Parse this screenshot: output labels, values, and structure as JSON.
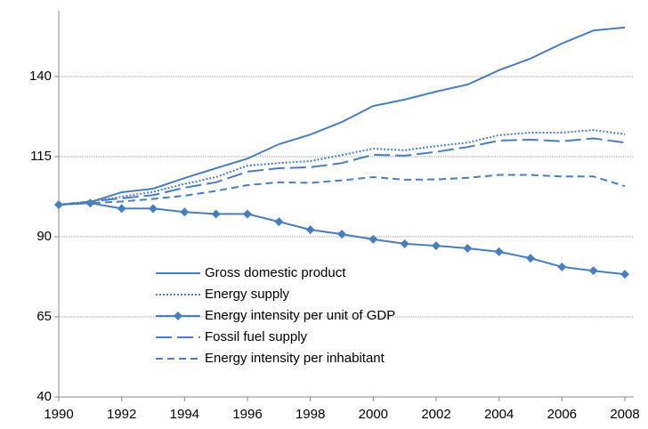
{
  "chart_data": {
    "type": "line",
    "x": [
      1990,
      1991,
      1992,
      1993,
      1994,
      1995,
      1996,
      1997,
      1998,
      1999,
      2000,
      2001,
      2002,
      2003,
      2004,
      2005,
      2006,
      2007,
      2008
    ],
    "xlim": [
      1990,
      2008
    ],
    "xticks": [
      1990,
      1992,
      1994,
      1996,
      1998,
      2000,
      2002,
      2004,
      2006,
      2008
    ],
    "ylim": [
      40,
      160
    ],
    "yticks": [
      40,
      65,
      90,
      115,
      140
    ],
    "grid": true,
    "legend": "lower left",
    "series": [
      {
        "name": "Gross domestic product",
        "color": "#4a7ebb",
        "style": "solid",
        "values": [
          100,
          100.8,
          103.9,
          105,
          108.3,
          111.4,
          114.4,
          118.9,
          121.9,
          125.8,
          130.8,
          132.8,
          135.3,
          137.5,
          142,
          145.6,
          150.3,
          154.4,
          155.3
        ]
      },
      {
        "name": "Energy supply",
        "color": "#4a7ebb",
        "style": "dotted",
        "values": [
          100,
          101,
          102.5,
          104,
          106.5,
          108.6,
          112.2,
          113,
          113.6,
          115.5,
          117.5,
          117,
          118.3,
          119.4,
          121.7,
          122.5,
          122.5,
          123.3,
          122
        ]
      },
      {
        "name": "Energy intensity per unit of GDP",
        "color": "#4a7ebb",
        "style": "solid",
        "marker": "diamond",
        "values": [
          100,
          100.5,
          98.8,
          98.8,
          97.7,
          97.1,
          97.1,
          94.7,
          92.2,
          90.8,
          89.2,
          87.8,
          87.2,
          86.4,
          85.3,
          83.3,
          80.6,
          79.4,
          78.3
        ]
      },
      {
        "name": "Fossil fuel supply",
        "color": "#4a7ebb",
        "style": "longdash",
        "values": [
          100,
          101,
          102,
          103,
          105.3,
          107,
          110.3,
          111.4,
          111.7,
          113,
          115.6,
          115.3,
          116.5,
          118,
          120,
          120.3,
          119.8,
          120.7,
          119.4
        ]
      },
      {
        "name": "Energy intensity per inhabitant",
        "color": "#4a7ebb",
        "style": "dashed",
        "values": [
          100,
          100.5,
          101,
          101.8,
          102.8,
          104.3,
          106.1,
          107,
          106.8,
          107.6,
          108.6,
          107.8,
          107.9,
          108.4,
          109.3,
          109.3,
          108.8,
          108.8,
          105.8
        ]
      }
    ]
  }
}
